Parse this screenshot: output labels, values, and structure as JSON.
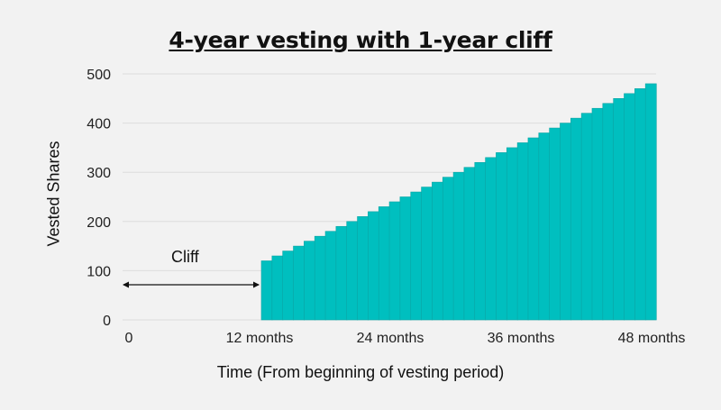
{
  "chart_data": {
    "type": "bar",
    "title": "4-year vesting with 1-year cliff",
    "xlabel": "Time (From beginning of vesting period)",
    "ylabel": "Vested Shares",
    "xticks": [
      "0",
      "12 months",
      "24 months",
      "36 months",
      "48 months"
    ],
    "xlim": [
      0,
      48
    ],
    "yticks": [
      0,
      100,
      200,
      300,
      400,
      500
    ],
    "ylim": [
      0,
      500
    ],
    "grid": true,
    "bar_color": "#00bfbf",
    "months": [
      12,
      13,
      14,
      15,
      16,
      17,
      18,
      19,
      20,
      21,
      22,
      23,
      24,
      25,
      26,
      27,
      28,
      29,
      30,
      31,
      32,
      33,
      34,
      35,
      36,
      37,
      38,
      39,
      40,
      41,
      42,
      43,
      44,
      45,
      46,
      47,
      48
    ],
    "values": [
      120,
      130,
      140,
      150,
      160,
      170,
      180,
      190,
      200,
      210,
      220,
      230,
      240,
      250,
      260,
      270,
      280,
      290,
      300,
      310,
      320,
      330,
      340,
      350,
      360,
      370,
      380,
      390,
      400,
      410,
      420,
      430,
      440,
      450,
      460,
      470,
      480
    ],
    "annotation": {
      "label": "Cliff",
      "from_month": 0,
      "to_month": 12
    }
  }
}
